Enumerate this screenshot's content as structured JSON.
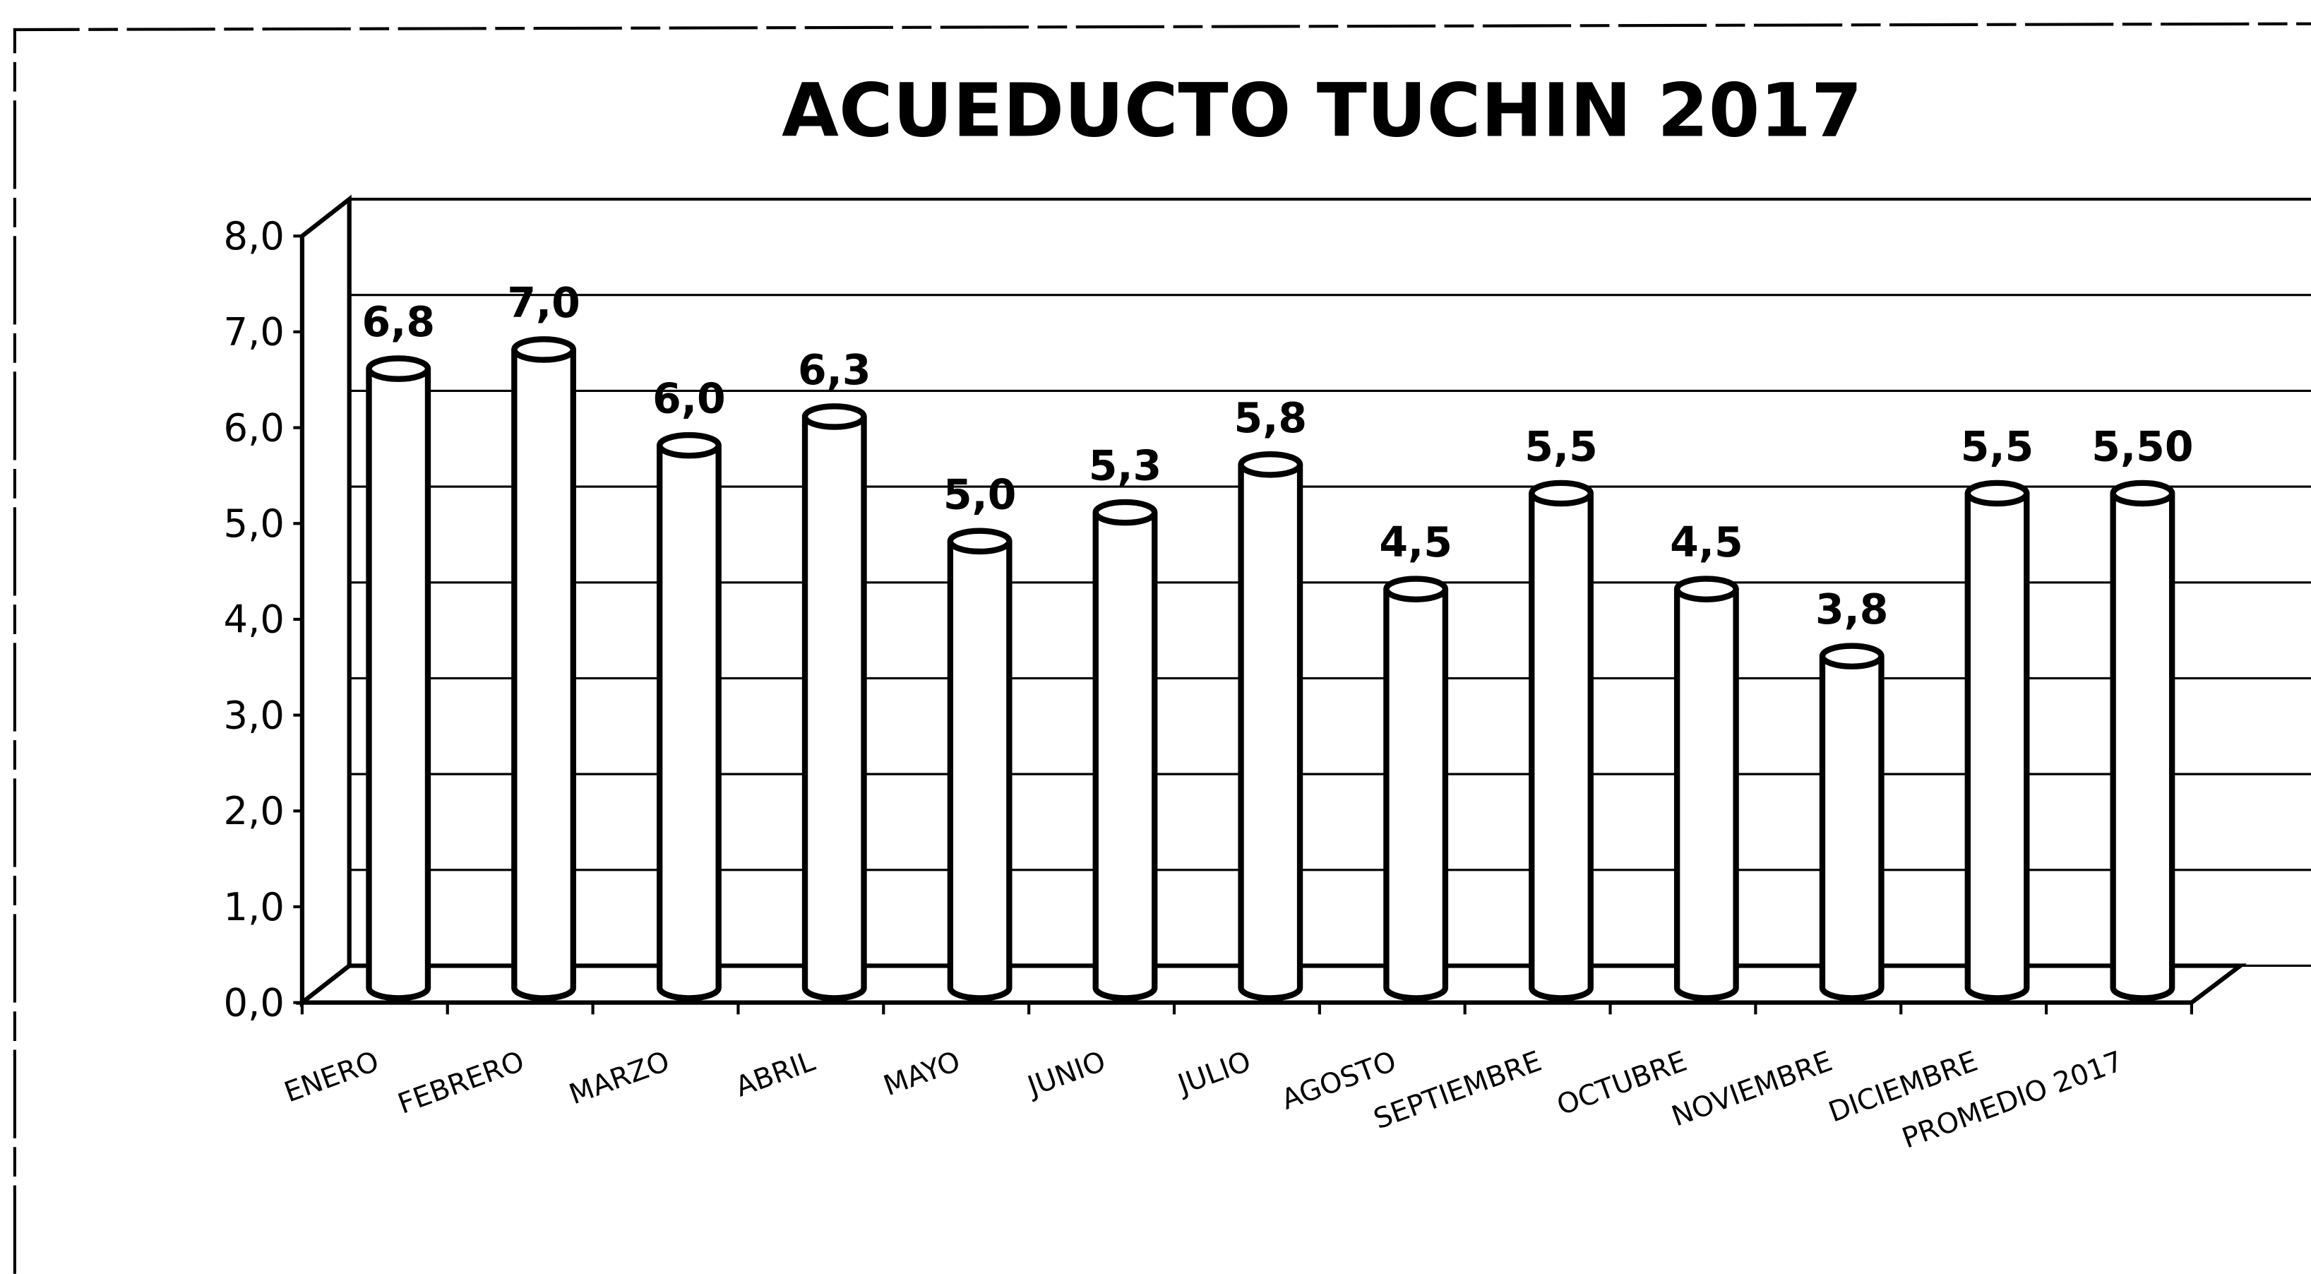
{
  "chart_data": {
    "type": "bar",
    "title": "ACUEDUCTO TUCHIN 2017",
    "categories": [
      "ENERO",
      "FEBRERO",
      "MARZO",
      "ABRIL",
      "MAYO",
      "JUNIO",
      "JULIO",
      "AGOSTO",
      "SEPTIEMBRE",
      "OCTUBRE",
      "NOVIEMBRE",
      "DICIEMBRE",
      "PROMEDIO 2017"
    ],
    "values": [
      6.8,
      7.0,
      6.0,
      6.3,
      5.0,
      5.3,
      5.8,
      4.5,
      5.5,
      4.5,
      3.8,
      5.5,
      5.5
    ],
    "value_labels": [
      "6,8",
      "7,0",
      "6,0",
      "6,3",
      "5,0",
      "5,3",
      "5,8",
      "4,5",
      "5,5",
      "4,5",
      "3,8",
      "5,5",
      "5,50"
    ],
    "color": "#ffffff",
    "ylim": [
      0,
      8
    ],
    "yticks": [
      {
        "value": 0,
        "label": "0,0"
      },
      {
        "value": 1,
        "label": "1,0"
      },
      {
        "value": 2,
        "label": "2,0"
      },
      {
        "value": 3,
        "label": "3,0"
      },
      {
        "value": 4,
        "label": "4,0"
      },
      {
        "value": 5,
        "label": "5,0"
      },
      {
        "value": 6,
        "label": "6,0"
      },
      {
        "value": 7,
        "label": "7,0"
      },
      {
        "value": 8,
        "label": "8,0"
      }
    ],
    "grid": true
  }
}
